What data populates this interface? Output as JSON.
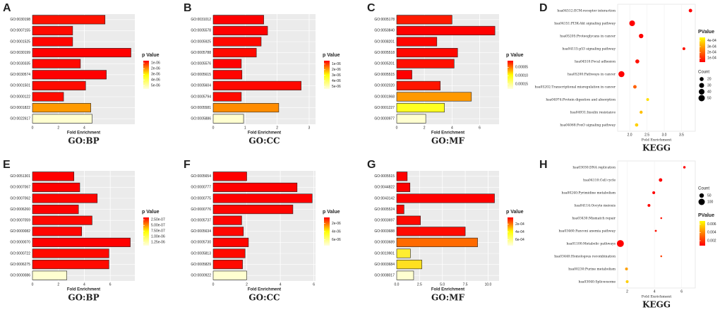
{
  "chart_data": [
    {
      "type": "barh",
      "label": "A",
      "title": "GO:BP",
      "x_label": "Fold Enrichment",
      "categories": [
        "GO:0030198",
        "GO:0007155",
        "GO:0001525",
        "GO:0030199",
        "GO:0030335",
        "GO:0030574",
        "GO:0001501",
        "GO:0000122",
        "GO:0001822",
        "GO:0022617"
      ],
      "values": [
        5.6,
        3.1,
        3.1,
        7.6,
        3.7,
        5.7,
        4.1,
        2.4,
        4.5,
        4.6
      ],
      "colors": [
        "#ff1200",
        "#ff0a00",
        "#ff0500",
        "#ff0000",
        "#ff0800",
        "#ff0000",
        "#ff0a00",
        "#ff0c00",
        "#ff9a00",
        "#ffffd0"
      ],
      "xlim": [
        0,
        7.9
      ],
      "xticks": [
        0,
        2,
        4
      ],
      "legends": [
        {
          "type": "color",
          "title": "p Value",
          "lim": [
            6e-07,
            5.6e-06
          ],
          "colors": [
            "#ff0000",
            "#ffff00",
            "#ffffe0"
          ],
          "ticks": [
            {
              "value": 1e-06,
              "label": "1e-06"
            },
            {
              "value": 2e-06,
              "label": "2e-06"
            },
            {
              "value": 3e-06,
              "label": "3e-06"
            },
            {
              "value": 4e-06,
              "label": "4e-06"
            },
            {
              "value": 5e-06,
              "label": "5e-06"
            }
          ]
        }
      ]
    },
    {
      "type": "barh",
      "label": "B",
      "title": "GO:CC",
      "x_label": "Fold Enrichment",
      "categories": [
        "GO:0031012",
        "GO:0005578",
        "GO:0005925",
        "GO:0005788",
        "GO:0005576",
        "GO:0005615",
        "GO:0005604",
        "GO:0005794",
        "GO:0005581",
        "GO:0005886"
      ],
      "values": [
        1.58,
        1.7,
        1.5,
        1.35,
        0.88,
        0.9,
        2.75,
        0.88,
        2.05,
        0.95
      ],
      "colors": [
        "#ff0000",
        "#ff0000",
        "#ff0800",
        "#ff0a00",
        "#ff0000",
        "#ff0500",
        "#ff0800",
        "#ff0a00",
        "#ff8c00",
        "#ffffd0"
      ],
      "xlim": [
        0,
        3.2
      ],
      "xticks": [
        0,
        1,
        2,
        3
      ],
      "legends": [
        {
          "type": "color",
          "title": "p Value",
          "lim": [
            4e-07,
            5.4e-06
          ],
          "colors": [
            "#ff0000",
            "#ffff00",
            "#ffffe0"
          ],
          "ticks": [
            {
              "value": 1e-06,
              "label": "1e-06"
            },
            {
              "value": 2e-06,
              "label": "2e-06"
            },
            {
              "value": 3e-06,
              "label": "3e-06"
            },
            {
              "value": 4e-06,
              "label": "4e-06"
            },
            {
              "value": 5e-06,
              "label": "5e-06"
            }
          ]
        }
      ]
    },
    {
      "type": "barh",
      "label": "C",
      "title": "GO:MF",
      "x_label": "Fold Enrichment",
      "categories": [
        "GO:0005178",
        "GO:0050840",
        "GO:0008201",
        "GO:0005518",
        "GO:0005201",
        "GO:0005515",
        "GO:0002020",
        "GO:0001968",
        "GO:0001227",
        "GO:0000977"
      ],
      "values": [
        4.0,
        7.1,
        2.9,
        4.4,
        4.15,
        1.1,
        3.15,
        5.4,
        3.45,
        2.1
      ],
      "colors": [
        "#ff1a00",
        "#ff0000",
        "#ff0500",
        "#ff0800",
        "#ff1000",
        "#ff0000",
        "#ff1500",
        "#ff9900",
        "#ffff20",
        "#ffffd0"
      ],
      "xlim": [
        0,
        7.4
      ],
      "xticks": [
        0,
        2,
        4,
        6
      ],
      "legends": [
        {
          "type": "color",
          "title": "p Value",
          "lim": [
            1e-05,
            0.00018
          ],
          "colors": [
            "#ff0000",
            "#ffff00",
            "#ffffe0"
          ],
          "ticks": [
            {
              "value": 5e-05,
              "label": "0.00005"
            },
            {
              "value": 0.0001,
              "label": "0.00010"
            },
            {
              "value": 0.00015,
              "label": "0.00015"
            }
          ]
        }
      ]
    },
    {
      "type": "dot",
      "label": "D",
      "title": "KEGG",
      "x_label": "Fold Enrichment",
      "categories": [
        "hsa04512:ECM-receptor interaction",
        "hsa04151:PI3K-Akt signaling pathway",
        "hsa05205:Proteoglycans in cancer",
        "hsa04115:p53 signaling pathway",
        "hsa04510:Focal adhesion",
        "hsa05200:Pathways in cancer",
        "hsa05202:Transcriptional misregulation in cancer",
        "hsa04974:Protein digestion and absorption",
        "hsa04931:Insulin resistance",
        "hsa04068:FoxO signaling pathway"
      ],
      "values": [
        3.76,
        2.07,
        2.33,
        3.57,
        2.22,
        1.76,
        2.15,
        2.52,
        2.33,
        2.2
      ],
      "counts": [
        15,
        40,
        25,
        10,
        20,
        45,
        15,
        10,
        12,
        14
      ],
      "colors": [
        "#ff0000",
        "#ff0000",
        "#ff0000",
        "#ff1000",
        "#ff1000",
        "#ff0000",
        "#ff6000",
        "#ffe000",
        "#ffc000",
        "#ffd000"
      ],
      "xlim": [
        1.65,
        3.9
      ],
      "xticks": [
        {
          "value": 2,
          "label": "2.0"
        },
        2.5,
        {
          "value": 3,
          "label": "3.0"
        },
        3.5
      ],
      "legends": [
        {
          "type": "color",
          "title": "PValue",
          "lim": [
            3e-05,
            0.00046
          ],
          "colors": [
            "#ff0000",
            "#ffff00"
          ],
          "ticks": [
            {
              "value": 0.0001,
              "label": "1e-04"
            },
            {
              "value": 0.0002,
              "label": "2e-04"
            },
            {
              "value": 0.0003,
              "label": "3e-04"
            },
            {
              "value": 0.0004,
              "label": "4e-04"
            }
          ]
        },
        {
          "type": "size",
          "title": "Count",
          "ticks": [
            20,
            30,
            40,
            50
          ]
        }
      ]
    },
    {
      "type": "barh",
      "label": "E",
      "title": "GO:BP",
      "x_label": "Fold Enrichment",
      "categories": [
        "GO:0051301",
        "GO:0007067",
        "GO:0007062",
        "GO:0006260",
        "GO:0007059",
        "GO:0000082",
        "GO:0000070",
        "GO:0000722",
        "GO:0006275",
        "GO:0000086"
      ],
      "values": [
        3.2,
        3.65,
        5.0,
        3.55,
        4.6,
        3.8,
        7.55,
        5.9,
        5.9,
        2.65
      ],
      "colors": [
        "#ff0000",
        "#ff0000",
        "#ff0500",
        "#ff0000",
        "#ff0800",
        "#ff0500",
        "#ff0000",
        "#ff0a00",
        "#ff0a00",
        "#ffffd0"
      ],
      "xlim": [
        0,
        7.9
      ],
      "xticks": [
        0,
        2,
        4,
        6
      ],
      "legends": [
        {
          "type": "color",
          "title": "p Value",
          "lim": [
            1.5e-07,
            1.4e-06
          ],
          "colors": [
            "#ff0000",
            "#ffff00",
            "#ffffe0"
          ],
          "ticks": [
            {
              "value": 2.5e-07,
              "label": "2.50e-07"
            },
            {
              "value": 5e-07,
              "label": "5.00e-07"
            },
            {
              "value": 7.5e-07,
              "label": "7.50e-07"
            },
            {
              "value": 1e-06,
              "label": "1.00e-06"
            },
            {
              "value": 1.25e-06,
              "label": "1.25e-06"
            }
          ]
        }
      ]
    },
    {
      "type": "barh",
      "label": "F",
      "title": "GO:CC",
      "x_label": "Fold Enrichment",
      "categories": [
        "GO:0005654",
        "GO:0000777",
        "GO:0000775",
        "GO:0000776",
        "GO:0005737",
        "GO:0005634",
        "GO:0005730",
        "GO:0005813",
        "GO:0005829",
        "GO:0000922"
      ],
      "values": [
        2.0,
        5.0,
        5.9,
        4.75,
        1.7,
        1.8,
        2.1,
        1.9,
        1.75,
        2.0
      ],
      "colors": [
        "#ff0000",
        "#ff0000",
        "#ff0000",
        "#ff0500",
        "#ff0500",
        "#ff0800",
        "#ff0500",
        "#ff0a00",
        "#ff0a00",
        "#ffffd0"
      ],
      "xlim": [
        0,
        6.1
      ],
      "xticks": [
        0,
        2,
        4,
        6
      ],
      "legends": [
        {
          "type": "color",
          "title": "p Value",
          "lim": [
            5e-07,
            7.5e-06
          ],
          "colors": [
            "#ff0000",
            "#ffff00",
            "#ffffe0"
          ],
          "ticks": [
            {
              "value": 2e-06,
              "label": "2e-06"
            },
            {
              "value": 4e-06,
              "label": "4e-06"
            },
            {
              "value": 6e-06,
              "label": "6e-06"
            }
          ]
        }
      ]
    },
    {
      "type": "barh",
      "label": "G",
      "title": "GO:MF",
      "x_label": "Fold Enrichment",
      "categories": [
        "GO:0005515",
        "GO:0044822",
        "GO:0043142",
        "GO:0005524",
        "GO:0003697",
        "GO:0003688",
        "GO:0003689",
        "GO:0019901",
        "GO:0003684",
        "GO:0008017"
      ],
      "values": [
        1.15,
        1.45,
        10.7,
        0.8,
        2.6,
        7.5,
        8.85,
        1.5,
        2.75,
        1.85
      ],
      "colors": [
        "#ff0000",
        "#ff0000",
        "#ff0000",
        "#ff0500",
        "#ff0800",
        "#ff0a00",
        "#ff6a00",
        "#ffee30",
        "#ffe020",
        "#ffffd0"
      ],
      "xlim": [
        0,
        11.2
      ],
      "xticks": [
        {
          "value": 0,
          "label": "0.0"
        },
        2.5,
        {
          "value": 5,
          "label": "5.0"
        },
        7.5,
        {
          "value": 10,
          "label": "10.0"
        }
      ],
      "legends": [
        {
          "type": "color",
          "title": "p Value",
          "lim": [
            3e-05,
            0.00075
          ],
          "colors": [
            "#ff0000",
            "#ffff00",
            "#ffffe0"
          ],
          "ticks": [
            {
              "value": 0.0002,
              "label": "2e-04"
            },
            {
              "value": 0.0004,
              "label": "4e-04"
            },
            {
              "value": 0.0006,
              "label": "6e-04"
            }
          ]
        }
      ]
    },
    {
      "type": "dot",
      "label": "H",
      "title": "KEGG",
      "x_label": "Fold Enrichment",
      "categories": [
        "hsa03030:DNA replication",
        "hsa04110:Cell cycle",
        "hsa00240:Pyrimidine metabolism",
        "hsa04114:Oocyte meiosis",
        "hsa03430:Mismatch repair",
        "hsa03460:Fanconi anemia pathway",
        "hsa01100:Metabolic pathways",
        "hsa03440:Homologous recombination",
        "hsa00230:Purine metabolism",
        "hsa03040:Spliceosome"
      ],
      "values": [
        6.2,
        4.45,
        3.95,
        3.6,
        4.5,
        4.1,
        1.5,
        4.5,
        1.95,
        2.0
      ],
      "counts": [
        15,
        30,
        20,
        20,
        8,
        10,
        120,
        8,
        20,
        20
      ],
      "colors": [
        "#ff0000",
        "#ff0000",
        "#ff0000",
        "#ff0500",
        "#ff1000",
        "#ff1000",
        "#ff0000",
        "#ff4000",
        "#ffa000",
        "#ffd000"
      ],
      "xlim": [
        1.3,
        7.0
      ],
      "xticks": [
        2,
        4,
        6
      ],
      "legends": [
        {
          "type": "size",
          "title": "Count",
          "ticks": [
            50,
            100
          ]
        },
        {
          "type": "color",
          "title": "PValue",
          "lim": [
            0.0008,
            0.0068
          ],
          "colors": [
            "#ff0000",
            "#ffff00"
          ],
          "ticks": [
            0.002,
            0.004,
            0.006
          ]
        }
      ]
    }
  ]
}
